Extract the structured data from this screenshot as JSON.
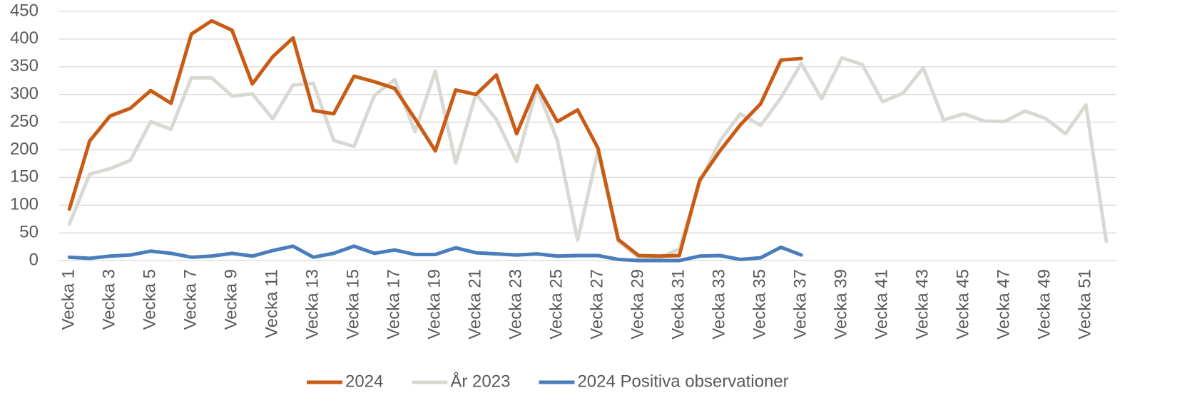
{
  "chart_data": {
    "type": "line",
    "categories": [
      "Vecka 1",
      null,
      "Vecka 3",
      null,
      "Vecka 5",
      null,
      "Vecka 7",
      null,
      "Vecka 9",
      null,
      "Vecka 11",
      null,
      "Vecka 13",
      null,
      "Vecka 15",
      null,
      "Vecka 17",
      null,
      "Vecka 19",
      null,
      "Vecka 21",
      null,
      "Vecka 23",
      null,
      "Vecka 25",
      null,
      "Vecka 27",
      null,
      "Vecka 29",
      null,
      "Vecka 31",
      null,
      "Vecka 33",
      null,
      "Vecka 35",
      null,
      "Vecka 37",
      null,
      "Vecka 39",
      null,
      "Vecka 41",
      null,
      "Vecka 43",
      null,
      "Vecka 45",
      null,
      "Vecka 47",
      null,
      "Vecka 49",
      null,
      "Vecka 51",
      null
    ],
    "series": [
      {
        "name": "2024",
        "color": "#c95b14",
        "values": [
          93,
          216,
          261,
          275,
          307,
          284,
          409,
          433,
          416,
          319,
          368,
          402,
          271,
          265,
          333,
          323,
          311,
          256,
          198,
          308,
          300,
          335,
          229,
          316,
          251,
          272,
          203,
          38,
          9,
          8,
          9,
          145,
          198,
          245,
          283,
          362,
          365,
          null,
          null,
          null,
          null,
          null,
          null,
          null,
          null,
          null,
          null,
          null,
          null,
          null,
          null,
          null
        ]
      },
      {
        "name": "År 2023",
        "color": "#d9d9d4",
        "values": [
          66,
          156,
          166,
          181,
          251,
          237,
          330,
          330,
          297,
          301,
          256,
          317,
          320,
          217,
          206,
          298,
          327,
          233,
          342,
          176,
          301,
          255,
          179,
          311,
          217,
          37,
          198,
          35,
          6,
          4,
          21,
          140,
          216,
          265,
          244,
          294,
          356,
          292,
          366,
          354,
          287,
          302,
          348,
          254,
          265,
          252,
          251,
          270,
          257,
          229,
          281,
          35
        ]
      },
      {
        "name": "2024 Positiva observationer",
        "color": "#4a7dbb",
        "values": [
          6,
          4,
          8,
          10,
          17,
          13,
          6,
          8,
          13,
          8,
          18,
          26,
          6,
          13,
          26,
          13,
          19,
          11,
          11,
          23,
          14,
          12,
          10,
          12,
          8,
          9,
          9,
          2,
          0,
          0,
          0,
          8,
          9,
          2,
          5,
          24,
          10,
          null,
          null,
          null,
          null,
          null,
          null,
          null,
          null,
          null,
          null,
          null,
          null,
          null,
          null,
          null
        ]
      }
    ],
    "ylim": [
      0,
      450
    ],
    "yticks": [
      0,
      50,
      100,
      150,
      200,
      250,
      300,
      350,
      400,
      450
    ],
    "grid": true,
    "legend": "bottom"
  }
}
